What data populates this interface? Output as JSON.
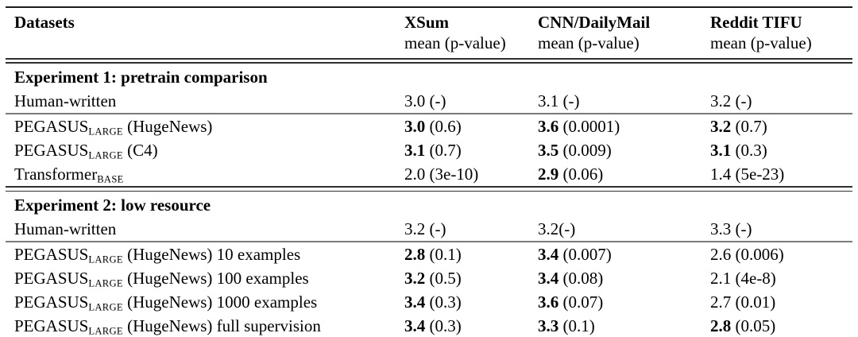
{
  "colors": {
    "background": "#ffffff",
    "text": "#000000",
    "rule_outer": "#1c1c1c",
    "rule_double": "#2f2f2f",
    "rule_thin": "#7a7a7a"
  },
  "table": {
    "header": {
      "datasets_label": "Datasets",
      "columns": [
        {
          "name": "XSum",
          "subtitle": "mean (p-value)"
        },
        {
          "name": "CNN/DailyMail",
          "subtitle": "mean (p-value)"
        },
        {
          "name": "Reddit TIFU",
          "subtitle": "mean (p-value)"
        }
      ]
    },
    "sections": [
      {
        "title": "Experiment 1: pretrain comparison",
        "rows": [
          {
            "label": {
              "pre": "Human-written",
              "sub": "",
              "post": ""
            },
            "divider_after": true,
            "cells": [
              {
                "mean": "3.0",
                "bold": false,
                "sep": " ",
                "p": "(-)"
              },
              {
                "mean": "3.1",
                "bold": false,
                "sep": " ",
                "p": "(-)"
              },
              {
                "mean": "3.2",
                "bold": false,
                "sep": " ",
                "p": "(-)"
              }
            ]
          },
          {
            "label": {
              "pre": "PEGASUS",
              "sub": "LARGE",
              "post": " (HugeNews)"
            },
            "divider_after": false,
            "cells": [
              {
                "mean": "3.0",
                "bold": true,
                "sep": " ",
                "p": "(0.6)"
              },
              {
                "mean": "3.6",
                "bold": true,
                "sep": " ",
                "p": "(0.0001)"
              },
              {
                "mean": "3.2",
                "bold": true,
                "sep": " ",
                "p": "(0.7)"
              }
            ]
          },
          {
            "label": {
              "pre": "PEGASUS",
              "sub": "LARGE",
              "post": " (C4)"
            },
            "divider_after": false,
            "cells": [
              {
                "mean": "3.1",
                "bold": true,
                "sep": " ",
                "p": "(0.7)"
              },
              {
                "mean": "3.5",
                "bold": true,
                "sep": " ",
                "p": "(0.009)"
              },
              {
                "mean": "3.1",
                "bold": true,
                "sep": " ",
                "p": "(0.3)"
              }
            ]
          },
          {
            "label": {
              "pre": "Transformer",
              "sub": "BASE",
              "post": ""
            },
            "divider_after": false,
            "cells": [
              {
                "mean": "2.0",
                "bold": false,
                "sep": " ",
                "p": "(3e-10)"
              },
              {
                "mean": "2.9",
                "bold": true,
                "sep": " ",
                "p": "(0.06)"
              },
              {
                "mean": "1.4",
                "bold": false,
                "sep": " ",
                "p": "(5e-23)"
              }
            ]
          }
        ]
      },
      {
        "title": "Experiment 2: low resource",
        "rows": [
          {
            "label": {
              "pre": "Human-written",
              "sub": "",
              "post": ""
            },
            "divider_after": true,
            "cells": [
              {
                "mean": "3.2",
                "bold": false,
                "sep": " ",
                "p": "(-)"
              },
              {
                "mean": "3.2",
                "bold": false,
                "sep": "",
                "p": "(-)"
              },
              {
                "mean": "3.3",
                "bold": false,
                "sep": " ",
                "p": "(-)"
              }
            ]
          },
          {
            "label": {
              "pre": "PEGASUS",
              "sub": "LARGE",
              "post": " (HugeNews) 10 examples"
            },
            "divider_after": false,
            "cells": [
              {
                "mean": "2.8",
                "bold": true,
                "sep": " ",
                "p": "(0.1)"
              },
              {
                "mean": "3.4",
                "bold": true,
                "sep": " ",
                "p": "(0.007)"
              },
              {
                "mean": "2.6",
                "bold": false,
                "sep": " ",
                "p": "(0.006)"
              }
            ]
          },
          {
            "label": {
              "pre": "PEGASUS",
              "sub": "LARGE",
              "post": " (HugeNews) 100 examples"
            },
            "divider_after": false,
            "cells": [
              {
                "mean": "3.2",
                "bold": true,
                "sep": " ",
                "p": "(0.5)"
              },
              {
                "mean": "3.4",
                "bold": true,
                "sep": " ",
                "p": "(0.08)"
              },
              {
                "mean": "2.1",
                "bold": false,
                "sep": " ",
                "p": "(4e-8)"
              }
            ]
          },
          {
            "label": {
              "pre": "PEGASUS",
              "sub": "LARGE",
              "post": " (HugeNews) 1000 examples"
            },
            "divider_after": false,
            "cells": [
              {
                "mean": "3.4",
                "bold": true,
                "sep": " ",
                "p": "(0.3)"
              },
              {
                "mean": "3.6",
                "bold": true,
                "sep": " ",
                "p": "(0.07)"
              },
              {
                "mean": "2.7",
                "bold": false,
                "sep": " ",
                "p": "(0.01)"
              }
            ]
          },
          {
            "label": {
              "pre": "PEGASUS",
              "sub": "LARGE",
              "post": " (HugeNews) full supervision"
            },
            "divider_after": false,
            "cells": [
              {
                "mean": "3.4",
                "bold": true,
                "sep": " ",
                "p": "(0.3)"
              },
              {
                "mean": "3.3",
                "bold": true,
                "sep": " ",
                "p": "(0.1)"
              },
              {
                "mean": "2.8",
                "bold": true,
                "sep": " ",
                "p": "(0.05)"
              }
            ]
          }
        ]
      }
    ]
  }
}
